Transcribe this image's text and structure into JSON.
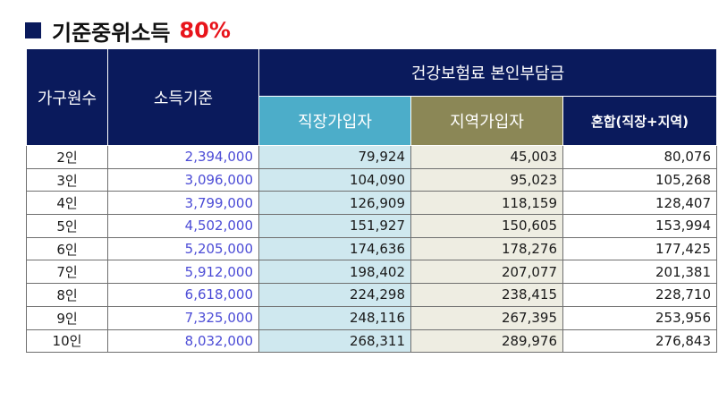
{
  "title": {
    "text": "기준중위소득",
    "percent": "80%"
  },
  "table": {
    "headers": {
      "household_size": "가구원수",
      "income_standard": "소득기준",
      "premium_group": "건강보험료 본인부담금",
      "workplace": "직장가입자",
      "regional": "지역가입자",
      "mixed": "혼합(직장+지역)"
    },
    "rows": [
      {
        "size": "2인",
        "income": "2,394,000",
        "workplace": "79,924",
        "regional": "45,003",
        "mixed": "80,076"
      },
      {
        "size": "3인",
        "income": "3,096,000",
        "workplace": "104,090",
        "regional": "95,023",
        "mixed": "105,268"
      },
      {
        "size": "4인",
        "income": "3,799,000",
        "workplace": "126,909",
        "regional": "118,159",
        "mixed": "128,407"
      },
      {
        "size": "5인",
        "income": "4,502,000",
        "workplace": "151,927",
        "regional": "150,605",
        "mixed": "153,994"
      },
      {
        "size": "6인",
        "income": "5,205,000",
        "workplace": "174,636",
        "regional": "178,276",
        "mixed": "177,425"
      },
      {
        "size": "7인",
        "income": "5,912,000",
        "workplace": "198,402",
        "regional": "207,077",
        "mixed": "201,381"
      },
      {
        "size": "8인",
        "income": "6,618,000",
        "workplace": "224,298",
        "regional": "238,415",
        "mixed": "228,710"
      },
      {
        "size": "9인",
        "income": "7,325,000",
        "workplace": "248,116",
        "regional": "267,395",
        "mixed": "253,956"
      },
      {
        "size": "10인",
        "income": "8,032,000",
        "workplace": "268,311",
        "regional": "289,976",
        "mixed": "276,843"
      }
    ]
  },
  "colors": {
    "header_navy": "#0a1a5c",
    "workplace_header": "#4cadc9",
    "regional_header": "#8b8756",
    "workplace_cell": "#cfe8ef",
    "regional_cell": "#eeede2",
    "income_text": "#4b4bd6",
    "percent_text": "#e8141b"
  }
}
